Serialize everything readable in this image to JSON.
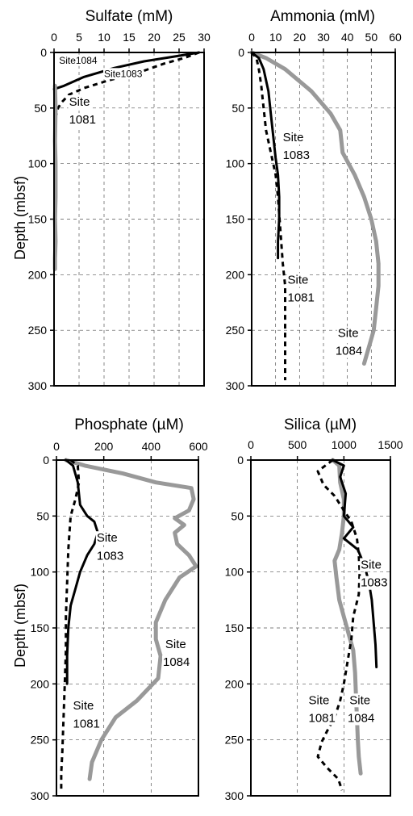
{
  "y_axis_label": "Depth (mbsf)",
  "chart_data": [
    {
      "type": "line",
      "title": "Sulfate (mM)",
      "xlim": [
        0,
        30
      ],
      "xticks": [
        "0",
        "5",
        "10",
        "15",
        "20",
        "25",
        "30"
      ],
      "ylim": [
        0,
        300
      ],
      "yticks": [
        "0",
        "50",
        "100",
        "150",
        "200",
        "250",
        "300"
      ],
      "ylabel": "Depth (mbsf)",
      "grid": true,
      "series": [
        {
          "name": "Site 1084",
          "color": "#000000",
          "style": "solid",
          "x": [
            29,
            25,
            18,
            12,
            6,
            2,
            0
          ],
          "y": [
            0,
            3,
            8,
            14,
            22,
            30,
            33
          ]
        },
        {
          "name": "Site1083",
          "color": "#000000",
          "style": "dashed",
          "x": [
            29,
            26,
            22,
            17,
            11,
            6,
            3,
            1.5,
            0.8,
            0.5,
            0.3,
            0.3
          ],
          "y": [
            0,
            5,
            10,
            18,
            25,
            32,
            38,
            45,
            50,
            55,
            58,
            62
          ]
        },
        {
          "name": "Site 1081",
          "color": "#999999",
          "style": "solid",
          "x": [
            0.2,
            0.3,
            0.2,
            0.3,
            0.3,
            0.2,
            0.3,
            0.2,
            0.2
          ],
          "y": [
            30,
            50,
            80,
            100,
            130,
            150,
            170,
            185,
            195
          ]
        }
      ],
      "annotations": [
        {
          "text": "Site1084",
          "x": 1,
          "y": 10
        },
        {
          "text": "Site1083",
          "x": 10,
          "y": 22
        },
        {
          "text": "Site",
          "x": 3,
          "y": 48
        },
        {
          "text": "1081",
          "x": 3,
          "y": 64
        }
      ]
    },
    {
      "type": "line",
      "title": "Ammonia (mM)",
      "xlim": [
        0,
        60
      ],
      "xticks": [
        "0",
        "10",
        "20",
        "30",
        "40",
        "50",
        "60"
      ],
      "ylim": [
        0,
        300
      ],
      "yticks": [
        "0",
        "50",
        "100",
        "150",
        "200",
        "250",
        "300"
      ],
      "grid": true,
      "series": [
        {
          "name": "Site 1084",
          "color": "#999999",
          "style": "solid",
          "x": [
            0,
            6,
            14,
            25,
            33,
            37,
            38,
            43,
            47,
            50,
            52,
            53,
            53,
            52,
            51,
            49,
            47
          ],
          "y": [
            0,
            5,
            15,
            35,
            55,
            70,
            90,
            110,
            130,
            150,
            170,
            190,
            210,
            230,
            250,
            265,
            280
          ]
        },
        {
          "name": "Site 1083",
          "color": "#000000",
          "style": "solid",
          "x": [
            0,
            3,
            5,
            7,
            8,
            9,
            10,
            11,
            11.5,
            11.5,
            11,
            11
          ],
          "y": [
            0,
            5,
            15,
            35,
            55,
            75,
            95,
            110,
            130,
            150,
            170,
            185
          ]
        },
        {
          "name": "Site 1081",
          "color": "#000000",
          "style": "dashed",
          "x": [
            0,
            2,
            3,
            4,
            5,
            6,
            8,
            10,
            11,
            12,
            13,
            14,
            14,
            14,
            14
          ],
          "y": [
            0,
            5,
            15,
            30,
            50,
            70,
            90,
            110,
            130,
            160,
            190,
            210,
            240,
            270,
            295
          ]
        }
      ],
      "annotations": [
        {
          "text": "Site",
          "x": 13,
          "y": 80
        },
        {
          "text": "1083",
          "x": 13,
          "y": 96
        },
        {
          "text": "Site",
          "x": 15,
          "y": 208
        },
        {
          "text": "1081",
          "x": 15,
          "y": 224
        },
        {
          "text": "Site",
          "x": 36,
          "y": 256
        },
        {
          "text": "1084",
          "x": 35,
          "y": 272
        }
      ]
    },
    {
      "type": "line",
      "title": "Phosphate (µM)",
      "xlim": [
        0,
        600
      ],
      "xticks": [
        "0",
        "200",
        "400",
        "600"
      ],
      "ylim": [
        0,
        300
      ],
      "yticks": [
        "0",
        "50",
        "100",
        "150",
        "200",
        "250",
        "300"
      ],
      "ylabel": "Depth (mbsf)",
      "grid": true,
      "series": [
        {
          "name": "Site 1084",
          "color": "#999999",
          "style": "solid",
          "x": [
            40,
            120,
            280,
            420,
            570,
            580,
            560,
            500,
            540,
            500,
            510,
            560,
            590,
            520,
            460,
            420,
            420,
            440,
            430,
            340,
            250,
            190,
            150,
            140
          ],
          "y": [
            0,
            5,
            12,
            20,
            25,
            35,
            45,
            52,
            58,
            65,
            75,
            85,
            95,
            105,
            125,
            145,
            160,
            175,
            195,
            215,
            230,
            250,
            270,
            285
          ]
        },
        {
          "name": "Site 1083",
          "color": "#000000",
          "style": "solid",
          "x": [
            40,
            70,
            90,
            100,
            130,
            160,
            175,
            160,
            130,
            100,
            80,
            60,
            50,
            45,
            45,
            45
          ],
          "y": [
            0,
            5,
            20,
            40,
            50,
            55,
            65,
            75,
            85,
            100,
            115,
            130,
            150,
            175,
            190,
            200
          ]
        },
        {
          "name": "Site 1081",
          "color": "#000000",
          "style": "dashed",
          "x": [
            60,
            90,
            95,
            80,
            60,
            55,
            50,
            45,
            40,
            40,
            35,
            30,
            25,
            20,
            20
          ],
          "y": [
            0,
            5,
            20,
            35,
            50,
            65,
            80,
            110,
            140,
            170,
            200,
            230,
            260,
            280,
            295
          ]
        }
      ],
      "annotations": [
        {
          "text": "Site",
          "x": 170,
          "y": 73
        },
        {
          "text": "1083",
          "x": 170,
          "y": 89
        },
        {
          "text": "Site",
          "x": 460,
          "y": 168
        },
        {
          "text": "1084",
          "x": 450,
          "y": 184
        },
        {
          "text": "Site",
          "x": 70,
          "y": 223
        },
        {
          "text": "1081",
          "x": 70,
          "y": 239
        }
      ]
    },
    {
      "type": "line",
      "title": "Silica (µM)",
      "xlim": [
        0,
        1500
      ],
      "xticks": [
        "0",
        "500",
        "1000",
        "1500"
      ],
      "ylim": [
        0,
        300
      ],
      "yticks": [
        "0",
        "50",
        "100",
        "150",
        "200",
        "250",
        "300"
      ],
      "grid": true,
      "series": [
        {
          "name": "Site 1084",
          "color": "#999999",
          "style": "solid",
          "x": [
            880,
            950,
            960,
            1000,
            1000,
            980,
            950,
            900,
            920,
            950,
            1000,
            1050,
            1100,
            1120,
            1130,
            1140,
            1150,
            1160,
            1180
          ],
          "y": [
            0,
            5,
            20,
            35,
            50,
            65,
            80,
            90,
            105,
            125,
            140,
            155,
            170,
            190,
            210,
            230,
            250,
            265,
            280
          ]
        },
        {
          "name": "Site 1083",
          "color": "#000000",
          "style": "solid",
          "x": [
            880,
            1000,
            960,
            1020,
            1000,
            1100,
            1000,
            1150,
            1200,
            1240,
            1270,
            1300,
            1320,
            1340,
            1350
          ],
          "y": [
            0,
            5,
            15,
            30,
            50,
            60,
            70,
            80,
            90,
            100,
            110,
            125,
            145,
            165,
            185
          ]
        },
        {
          "name": "Site 1081",
          "color": "#000000",
          "style": "dashed",
          "x": [
            880,
            720,
            780,
            900,
            1000,
            1080,
            1140,
            1160,
            1170,
            1160,
            1100,
            1080,
            1040,
            1000,
            960,
            900,
            820,
            760,
            720,
            820,
            940,
            980
          ],
          "y": [
            0,
            10,
            22,
            32,
            45,
            55,
            70,
            85,
            100,
            120,
            140,
            160,
            180,
            200,
            215,
            230,
            242,
            252,
            265,
            275,
            285,
            295
          ]
        }
      ],
      "annotations": [
        {
          "text": "Site",
          "x": 1180,
          "y": 97
        },
        {
          "text": "1083",
          "x": 1180,
          "y": 113
        },
        {
          "text": "Site",
          "x": 620,
          "y": 218
        },
        {
          "text": "1081",
          "x": 620,
          "y": 234
        },
        {
          "text": "Site",
          "x": 1060,
          "y": 218
        },
        {
          "text": "1084",
          "x": 1040,
          "y": 234
        }
      ]
    }
  ]
}
